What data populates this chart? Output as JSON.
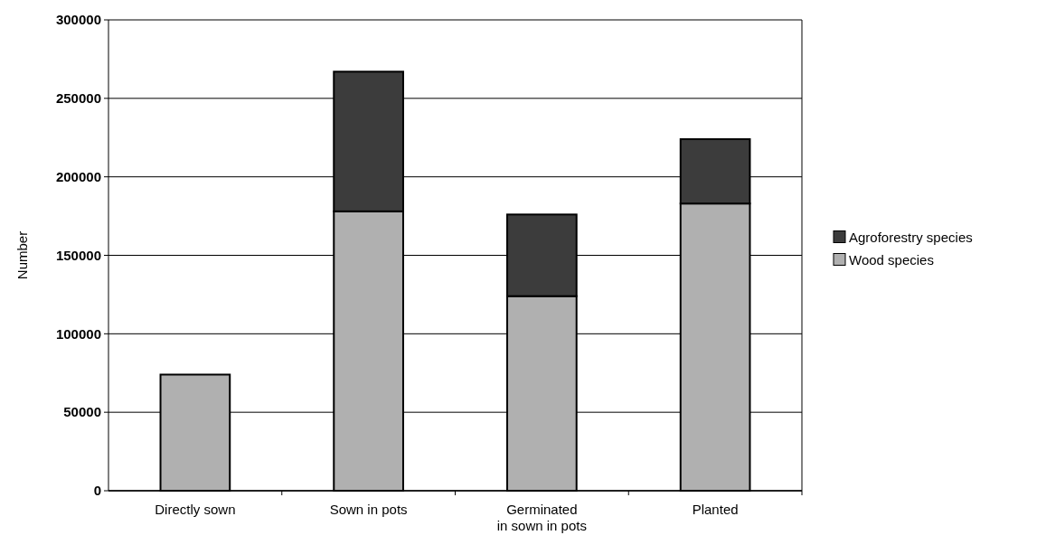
{
  "chart_data": {
    "type": "bar",
    "ylabel": "Number",
    "categories": [
      "Directly sown",
      "Sown in pots",
      "Germinated\nin sown in pots",
      "Planted"
    ],
    "stacked": true,
    "series": [
      {
        "name": "Wood species",
        "color": "#b0b0b0",
        "values": [
          74000,
          178000,
          124000,
          183000
        ]
      },
      {
        "name": "Agroforestry species",
        "color": "#3c3c3c",
        "values": [
          0,
          89000,
          52000,
          41000
        ]
      }
    ],
    "ylim": [
      0,
      300000
    ],
    "yticks": [
      0,
      50000,
      100000,
      150000,
      200000,
      250000,
      300000
    ],
    "grid": "y",
    "legend": "right"
  }
}
